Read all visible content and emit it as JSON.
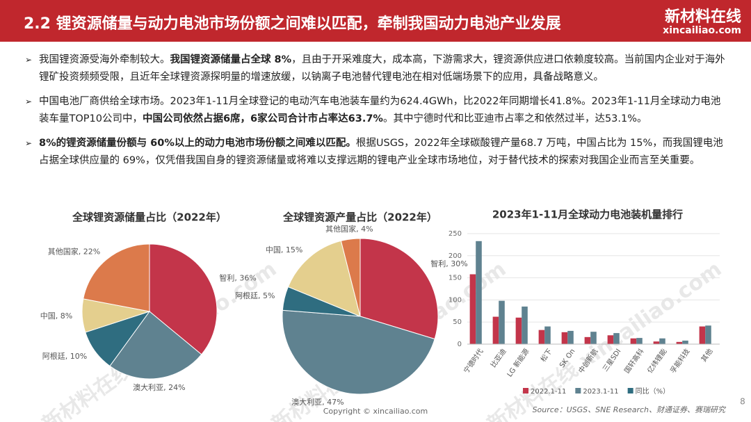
{
  "header": {
    "title": "2.2  锂资源储量与动力电池市场份额之间难以匹配，牵制我国动力电池产业发展",
    "logo": "新材料在线",
    "logo_url": "xincailiao.com"
  },
  "bullets": [
    [
      {
        "text": "我国锂资源受海外牵制较大。",
        "bold": false
      },
      {
        "text": "我国锂资源储量占全球 8%",
        "bold": true
      },
      {
        "text": "，且由于开采难度大，成本高，下游需求大，锂资源供应进口依赖度较高。当前国内企业对于海外锂矿投资频频受限，且近年全球锂资源探明量的增速放缓，以钠离子电池替代锂电池在相对低端场景下的应用，具备战略意义。",
        "bold": false
      }
    ],
    [
      {
        "text": "中国电池厂商供给全球市场。2023年1-11月全球登记的电动汽车电池装车量约为624.4GWh，比2022年同期增长41.8%。2023年1-11月全球动力电池装车量TOP10公司中，",
        "bold": false
      },
      {
        "text": "中国公司依然占据6席，6家公司合计市占率达63.7%",
        "bold": true
      },
      {
        "text": "。其中宁德时代和比亚迪市占率之和依然过半，达53.1%。",
        "bold": false
      }
    ],
    [
      {
        "text": "8%的锂资源储量份额与 60%以上的动力电池市场份额之间难以匹配。",
        "bold": true
      },
      {
        "text": "根据USGS，2022年全球碳酸锂产量68.7 万吨，中国占比为 15%，而我国锂电池占据全球供应量的 69%，仅凭借我国自身的锂资源储量或将难以支撑远期的锂电产业全球市场地位，对于替代技术的探索对我国企业而言至关重要。",
        "bold": false
      }
    ]
  ],
  "chart_data": [
    {
      "type": "pie",
      "title": "全球锂资源储量占比（2022年）",
      "labels": [
        "智利, 36%",
        "澳大利亚, 24%",
        "阿根廷, 10%",
        "中国, 8%",
        "其他国家, 22%"
      ],
      "values": [
        36,
        24,
        10,
        8,
        22
      ],
      "colors": [
        "#c3354a",
        "#5f8290",
        "#2f6d80",
        "#e4cf8e",
        "#dc7a4b"
      ]
    },
    {
      "type": "pie",
      "title": "全球锂资源产量占比（2022年）",
      "labels": [
        "智利, 30%",
        "澳大利亚, 47%",
        "阿根廷, 5%",
        "中国, 15%",
        "其他国家, 4%"
      ],
      "values": [
        30,
        47,
        5,
        15,
        4
      ],
      "colors": [
        "#c3354a",
        "#5f8290",
        "#2f6d80",
        "#e4cf8e",
        "#dc7a4b"
      ]
    },
    {
      "type": "bar",
      "title": "2023年1-11月全球动力电池装机量排行",
      "categories": [
        "宁德时代",
        "比亚迪",
        "LG 新能源",
        "松下",
        "SK On",
        "中创新航",
        "三星SDI",
        "国轩高科",
        "亿纬锂能",
        "孚能科技",
        "其他"
      ],
      "series": [
        {
          "name": "2022.1-11",
          "color": "#c3354a",
          "values": [
            158,
            62,
            60,
            32,
            27,
            16,
            20,
            13,
            6,
            5,
            40
          ]
        },
        {
          "name": "2023.1-11",
          "color": "#5f8290",
          "values": [
            233,
            98,
            85,
            40,
            30,
            28,
            25,
            14,
            13,
            8,
            42
          ]
        },
        {
          "name": "同比（%）",
          "color": "#2f6d80",
          "values": [
            null,
            null,
            null,
            null,
            null,
            null,
            null,
            null,
            null,
            null,
            null
          ]
        }
      ],
      "ylim": [
        0,
        250
      ],
      "yticks": [
        0,
        50,
        100,
        150,
        200,
        250
      ]
    }
  ],
  "footer": {
    "copyright": "Copyright © xincailiao.com",
    "source": "Source：USGS、SNE Research、财通证券、赛瑞研究",
    "page": "8"
  },
  "watermark": "新材料在线 xincailiao.com"
}
